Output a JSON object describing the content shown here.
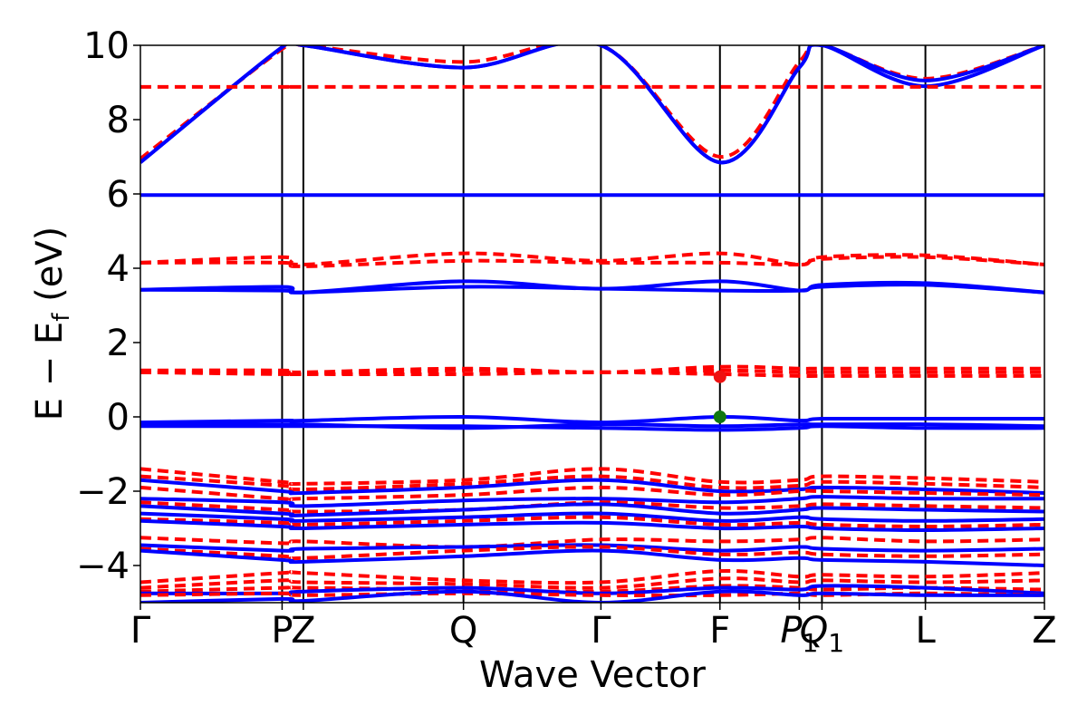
{
  "chart_data": {
    "type": "line",
    "xlabel": "Wave Vector",
    "ylabel": "E − E",
    "ylabel_sub": "f",
    "ylabel_unit": " (eV)",
    "xlim": [
      0,
      6.38
    ],
    "ylim": [
      -5,
      10
    ],
    "yticks": [
      -4,
      -2,
      0,
      2,
      4,
      6,
      8,
      10
    ],
    "ytick_labels": [
      "−4",
      "−2",
      "0",
      "2",
      "4",
      "6",
      "8",
      "10"
    ],
    "kpoints": [
      {
        "label": "Γ",
        "x": 0.0
      },
      {
        "label": "P",
        "x": 1.0
      },
      {
        "label": "Z",
        "x": 1.15
      },
      {
        "label": "Q",
        "x": 2.28
      },
      {
        "label": "Γ",
        "x": 3.25
      },
      {
        "label": "F",
        "x": 4.09
      },
      {
        "label": "P",
        "sub": "1",
        "x": 4.65
      },
      {
        "label": "Q",
        "sub": "1",
        "x": 4.81
      },
      {
        "label": "L",
        "x": 5.54
      },
      {
        "label": "Z",
        "x": 6.38
      }
    ],
    "band_styles": {
      "spin_up": {
        "color": "#0000ff",
        "dash": "solid",
        "width": 4
      },
      "spin_down": {
        "color": "#ff0000",
        "dash": "12,7",
        "width": 4
      }
    },
    "series": [
      {
        "style": "spin_down",
        "values": [
          6.95,
          9.9,
          10.0,
          9.55,
          10.0,
          7.0,
          9.55,
          10.0,
          9.1,
          10.0
        ]
      },
      {
        "style": "spin_up",
        "values": [
          6.85,
          9.95,
          10.0,
          9.4,
          10.0,
          6.85,
          9.4,
          10.0,
          8.9,
          10.0
        ]
      },
      {
        "style": "spin_up",
        "values": [
          6.85,
          9.95,
          10.0,
          9.4,
          10.0,
          6.85,
          9.4,
          10.0,
          9.05,
          10.0
        ]
      },
      {
        "style": "spin_down",
        "values": [
          8.88,
          8.88,
          8.88,
          8.88,
          8.88,
          8.88,
          8.88,
          8.88,
          8.88,
          8.88
        ]
      },
      {
        "style": "spin_up",
        "values": [
          5.97,
          5.97,
          5.97,
          5.97,
          5.97,
          5.97,
          5.97,
          5.97,
          5.97,
          5.97
        ]
      },
      {
        "style": "spin_down",
        "values": [
          4.15,
          4.3,
          4.1,
          4.4,
          4.2,
          4.4,
          4.1,
          4.3,
          4.35,
          4.1
        ]
      },
      {
        "style": "spin_down",
        "values": [
          4.15,
          4.15,
          4.05,
          4.2,
          4.15,
          4.15,
          4.1,
          4.25,
          4.3,
          4.1
        ]
      },
      {
        "style": "spin_up",
        "values": [
          3.42,
          3.5,
          3.35,
          3.65,
          3.45,
          3.65,
          3.4,
          3.55,
          3.6,
          3.35
        ]
      },
      {
        "style": "spin_up",
        "values": [
          3.42,
          3.4,
          3.35,
          3.5,
          3.45,
          3.4,
          3.4,
          3.5,
          3.55,
          3.35
        ]
      },
      {
        "style": "spin_down",
        "values": [
          1.25,
          1.25,
          1.2,
          1.3,
          1.2,
          1.35,
          1.3,
          1.3,
          1.3,
          1.3
        ]
      },
      {
        "style": "spin_down",
        "values": [
          1.2,
          1.2,
          1.15,
          1.25,
          1.2,
          1.25,
          1.2,
          1.2,
          1.2,
          1.2
        ]
      },
      {
        "style": "spin_down",
        "values": [
          1.2,
          1.15,
          1.15,
          1.15,
          1.2,
          1.15,
          1.1,
          1.1,
          1.1,
          1.1
        ]
      },
      {
        "style": "spin_up",
        "values": [
          -0.15,
          -0.1,
          -0.1,
          0.0,
          -0.15,
          0.0,
          -0.1,
          -0.05,
          -0.05,
          -0.05
        ]
      },
      {
        "style": "spin_up",
        "values": [
          -0.2,
          -0.2,
          -0.2,
          -0.3,
          -0.2,
          -0.25,
          -0.2,
          -0.2,
          -0.2,
          -0.25
        ]
      },
      {
        "style": "spin_up",
        "values": [
          -0.25,
          -0.25,
          -0.25,
          -0.25,
          -0.3,
          -0.35,
          -0.3,
          -0.25,
          -0.3,
          -0.3
        ]
      },
      {
        "style": "spin_down",
        "values": [
          -1.4,
          -1.75,
          -1.8,
          -1.7,
          -1.4,
          -1.75,
          -1.7,
          -1.6,
          -1.65,
          -1.75
        ]
      },
      {
        "style": "spin_down",
        "values": [
          -1.6,
          -1.85,
          -1.95,
          -1.8,
          -1.6,
          -1.9,
          -1.85,
          -1.75,
          -1.8,
          -1.9
        ]
      },
      {
        "style": "spin_up",
        "values": [
          -1.7,
          -2.0,
          -2.05,
          -1.9,
          -1.7,
          -2.0,
          -1.95,
          -1.9,
          -1.95,
          -2.05
        ]
      },
      {
        "style": "spin_down",
        "values": [
          -1.9,
          -2.2,
          -2.2,
          -2.1,
          -1.9,
          -2.1,
          -2.0,
          -2.0,
          -2.05,
          -2.1
        ]
      },
      {
        "style": "spin_up",
        "values": [
          -2.2,
          -2.3,
          -2.4,
          -2.25,
          -2.2,
          -2.3,
          -2.2,
          -2.15,
          -2.2,
          -2.2
        ]
      },
      {
        "style": "spin_down",
        "values": [
          -2.3,
          -2.5,
          -2.55,
          -2.5,
          -2.3,
          -2.45,
          -2.4,
          -2.35,
          -2.4,
          -2.45
        ]
      },
      {
        "style": "spin_up",
        "values": [
          -2.4,
          -2.6,
          -2.65,
          -2.5,
          -2.35,
          -2.6,
          -2.5,
          -2.45,
          -2.5,
          -2.55
        ]
      },
      {
        "style": "spin_up",
        "values": [
          -2.6,
          -2.75,
          -2.8,
          -2.7,
          -2.6,
          -2.8,
          -2.7,
          -2.75,
          -2.8,
          -2.75
        ]
      },
      {
        "style": "spin_down",
        "values": [
          -2.75,
          -2.85,
          -2.9,
          -2.8,
          -2.7,
          -2.9,
          -2.85,
          -2.9,
          -2.95,
          -2.9
        ]
      },
      {
        "style": "spin_up",
        "values": [
          -2.8,
          -2.95,
          -3.0,
          -2.9,
          -2.85,
          -3.0,
          -2.95,
          -3.0,
          -3.05,
          -3.0
        ]
      },
      {
        "style": "spin_down",
        "values": [
          -3.25,
          -3.4,
          -3.35,
          -3.5,
          -3.3,
          -3.35,
          -3.3,
          -3.25,
          -3.35,
          -3.3
        ]
      },
      {
        "style": "spin_up",
        "values": [
          -3.45,
          -3.6,
          -3.55,
          -3.5,
          -3.45,
          -3.6,
          -3.5,
          -3.55,
          -3.6,
          -3.55
        ]
      },
      {
        "style": "spin_down",
        "values": [
          -3.55,
          -3.75,
          -3.8,
          -3.6,
          -3.5,
          -3.7,
          -3.65,
          -3.7,
          -3.75,
          -3.7
        ]
      },
      {
        "style": "spin_up",
        "values": [
          -3.6,
          -3.85,
          -3.9,
          -3.75,
          -3.6,
          -3.85,
          -3.8,
          -3.85,
          -3.9,
          -4.0
        ]
      },
      {
        "style": "spin_down",
        "values": [
          -4.45,
          -4.2,
          -4.2,
          -4.4,
          -4.45,
          -4.15,
          -4.3,
          -4.25,
          -4.3,
          -4.2
        ]
      },
      {
        "style": "spin_down",
        "values": [
          -4.6,
          -4.4,
          -4.45,
          -4.5,
          -4.6,
          -4.35,
          -4.45,
          -4.4,
          -4.45,
          -4.4
        ]
      },
      {
        "style": "spin_down",
        "values": [
          -4.7,
          -4.6,
          -4.6,
          -4.65,
          -4.7,
          -4.55,
          -4.6,
          -4.65,
          -4.6,
          -4.65
        ]
      },
      {
        "style": "spin_up",
        "values": [
          -4.75,
          -4.75,
          -4.7,
          -4.6,
          -4.75,
          -4.6,
          -4.65,
          -4.55,
          -4.6,
          -4.75
        ]
      },
      {
        "style": "spin_down",
        "values": [
          -4.8,
          -4.75,
          -4.8,
          -4.75,
          -4.8,
          -4.8,
          -4.75,
          -4.8,
          -4.75,
          -4.8
        ]
      },
      {
        "style": "spin_up",
        "values": [
          -5.0,
          -4.9,
          -4.95,
          -4.7,
          -5.0,
          -4.7,
          -4.8,
          -4.75,
          -4.8,
          -4.8
        ]
      }
    ],
    "markers": [
      {
        "x": 4.09,
        "y": 1.08,
        "color": "#ee1111"
      },
      {
        "x": 4.09,
        "y": 0.0,
        "color": "#117711"
      }
    ]
  }
}
